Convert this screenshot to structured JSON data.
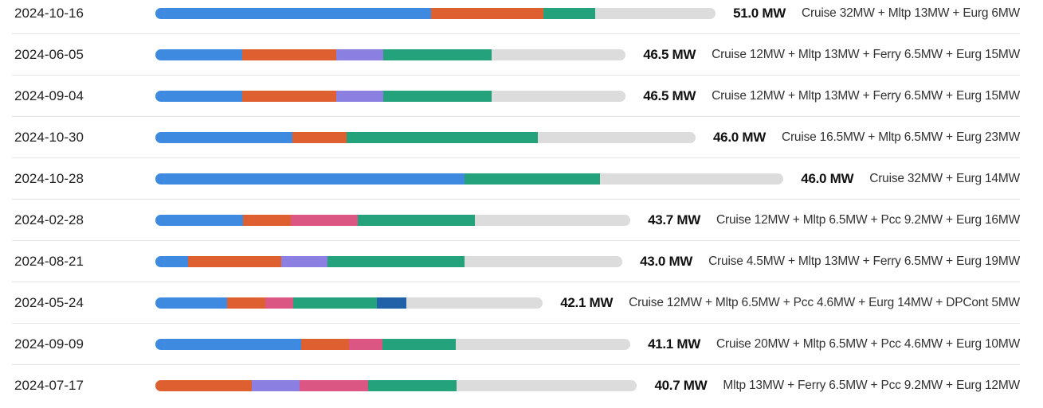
{
  "xlim": [
    0,
    65
  ],
  "colors": {
    "Cruise": "#3d8ae0",
    "Mltp": "#de5f30",
    "Ferry": "#8b80e2",
    "Pcc": "#dc5684",
    "Eurg": "#23a27b",
    "DPCont": "#2061a8"
  },
  "rows": [
    {
      "date": "2024-10-16",
      "total": "51.0 MW",
      "breakdown": "Cruise 32MW + Mltp 13MW + Eurg 6MW",
      "segments": [
        {
          "type": "Cruise",
          "value": 32
        },
        {
          "type": "Mltp",
          "value": 13
        },
        {
          "type": "Eurg",
          "value": 6
        }
      ]
    },
    {
      "date": "2024-06-05",
      "total": "46.5 MW",
      "breakdown": "Cruise 12MW + Mltp 13MW + Ferry 6.5MW + Eurg 15MW",
      "segments": [
        {
          "type": "Cruise",
          "value": 12
        },
        {
          "type": "Mltp",
          "value": 13
        },
        {
          "type": "Ferry",
          "value": 6.5
        },
        {
          "type": "Eurg",
          "value": 15
        }
      ]
    },
    {
      "date": "2024-09-04",
      "total": "46.5 MW",
      "breakdown": "Cruise 12MW + Mltp 13MW + Ferry 6.5MW + Eurg 15MW",
      "segments": [
        {
          "type": "Cruise",
          "value": 12
        },
        {
          "type": "Mltp",
          "value": 13
        },
        {
          "type": "Ferry",
          "value": 6.5
        },
        {
          "type": "Eurg",
          "value": 15
        }
      ]
    },
    {
      "date": "2024-10-30",
      "total": "46.0 MW",
      "breakdown": "Cruise 16.5MW + Mltp 6.5MW + Eurg 23MW",
      "segments": [
        {
          "type": "Cruise",
          "value": 16.5
        },
        {
          "type": "Mltp",
          "value": 6.5
        },
        {
          "type": "Eurg",
          "value": 23
        }
      ]
    },
    {
      "date": "2024-10-28",
      "total": "46.0 MW",
      "breakdown": "Cruise 32MW + Eurg 14MW",
      "segments": [
        {
          "type": "Cruise",
          "value": 32
        },
        {
          "type": "Eurg",
          "value": 14
        }
      ]
    },
    {
      "date": "2024-02-28",
      "total": "43.7 MW",
      "breakdown": "Cruise 12MW + Mltp 6.5MW + Pcc 9.2MW + Eurg 16MW",
      "segments": [
        {
          "type": "Cruise",
          "value": 12
        },
        {
          "type": "Mltp",
          "value": 6.5
        },
        {
          "type": "Pcc",
          "value": 9.2
        },
        {
          "type": "Eurg",
          "value": 16
        }
      ]
    },
    {
      "date": "2024-08-21",
      "total": "43.0 MW",
      "breakdown": "Cruise 4.5MW + Mltp 13MW + Ferry 6.5MW + Eurg 19MW",
      "segments": [
        {
          "type": "Cruise",
          "value": 4.5
        },
        {
          "type": "Mltp",
          "value": 13
        },
        {
          "type": "Ferry",
          "value": 6.5
        },
        {
          "type": "Eurg",
          "value": 19
        }
      ]
    },
    {
      "date": "2024-05-24",
      "total": "42.1 MW",
      "breakdown": "Cruise 12MW + Mltp 6.5MW + Pcc 4.6MW + Eurg 14MW + DPCont 5MW",
      "segments": [
        {
          "type": "Cruise",
          "value": 12
        },
        {
          "type": "Mltp",
          "value": 6.5
        },
        {
          "type": "Pcc",
          "value": 4.6
        },
        {
          "type": "Eurg",
          "value": 14
        },
        {
          "type": "DPCont",
          "value": 5
        }
      ]
    },
    {
      "date": "2024-09-09",
      "total": "41.1 MW",
      "breakdown": "Cruise 20MW + Mltp 6.5MW + Pcc 4.6MW + Eurg 10MW",
      "segments": [
        {
          "type": "Cruise",
          "value": 20
        },
        {
          "type": "Mltp",
          "value": 6.5
        },
        {
          "type": "Pcc",
          "value": 4.6
        },
        {
          "type": "Eurg",
          "value": 10
        }
      ]
    },
    {
      "date": "2024-07-17",
      "total": "40.7 MW",
      "breakdown": "Mltp 13MW + Ferry 6.5MW + Pcc 9.2MW + Eurg 12MW",
      "segments": [
        {
          "type": "Mltp",
          "value": 13
        },
        {
          "type": "Ferry",
          "value": 6.5
        },
        {
          "type": "Pcc",
          "value": 9.2
        },
        {
          "type": "Eurg",
          "value": 12
        }
      ]
    }
  ]
}
